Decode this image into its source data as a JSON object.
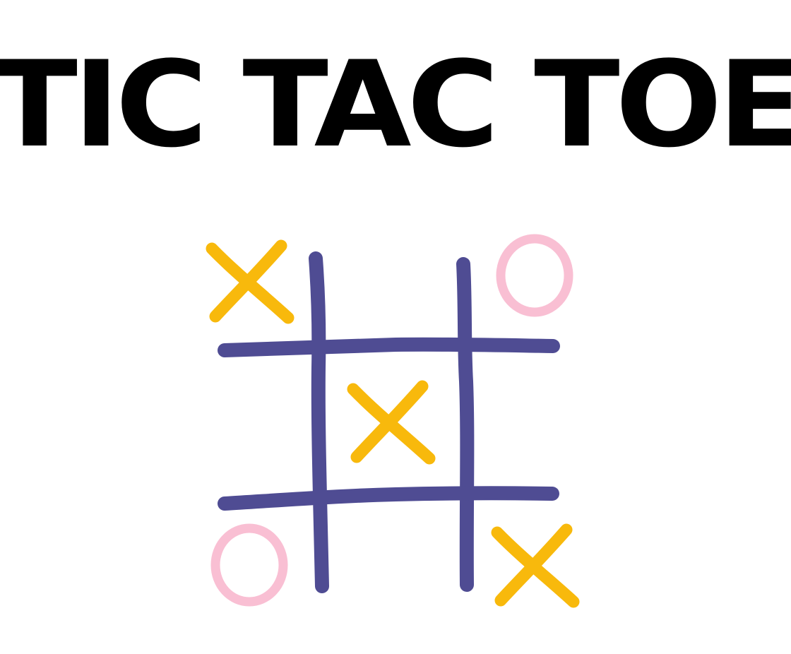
{
  "title": "TIC TAC TOE",
  "colors": {
    "background": "#ffffff",
    "title": "#000000",
    "grid": "#4f4c93",
    "x_mark": "#f8b90c",
    "o_mark": "#f9bfd3"
  },
  "board": {
    "rows": [
      [
        "X",
        "",
        "O"
      ],
      [
        "",
        "X",
        ""
      ],
      [
        "O",
        "",
        "X"
      ]
    ]
  }
}
